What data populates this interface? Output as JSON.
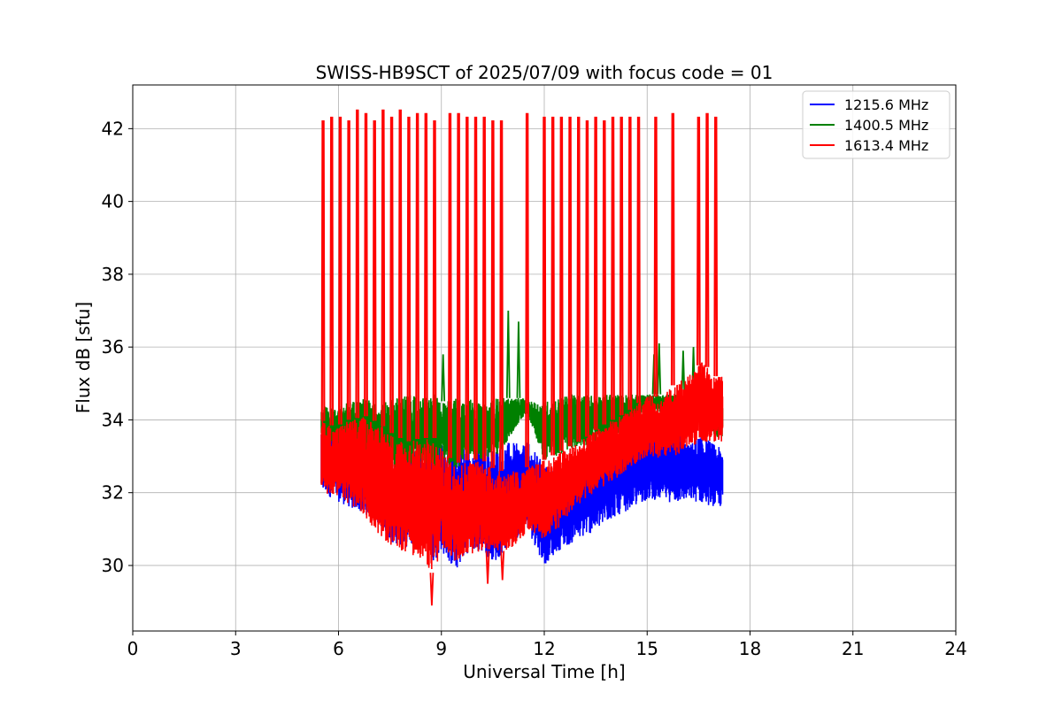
{
  "chart_data": {
    "type": "line",
    "title": "SWISS-HB9SCT of 2025/07/09 with focus code = 01",
    "xlabel": "Universal Time [h]",
    "ylabel": "Flux dB [sfu]",
    "xlim": [
      0,
      24
    ],
    "ylim": [
      28.2,
      43.2
    ],
    "xticks": [
      0,
      3,
      6,
      9,
      12,
      15,
      18,
      21,
      24
    ],
    "yticks": [
      30,
      32,
      34,
      36,
      38,
      40,
      42
    ],
    "grid": true,
    "legend_position": "top-right",
    "series": [
      {
        "name": "1215.6 MHz",
        "color": "#0000ff",
        "x": [
          5.5,
          5.9,
          6.3,
          6.8,
          7.2,
          7.6,
          8.0,
          8.4,
          8.8,
          9.0,
          9.4,
          9.8,
          10.2,
          10.6,
          11.0,
          11.4,
          11.5,
          12.0,
          12.4,
          12.8,
          13.2,
          13.6,
          14.0,
          14.4,
          14.8,
          15.0,
          15.4,
          15.8,
          16.2,
          16.6,
          17.0,
          17.2
        ],
        "y_max": [
          33.9,
          33.8,
          33.5,
          33.2,
          33.4,
          33.0,
          33.1,
          33.3,
          33.5,
          33.4,
          33.3,
          33.3,
          33.3,
          33.3,
          33.4,
          33.3,
          33.4,
          32.8,
          32.6,
          32.9,
          33.0,
          33.1,
          33.2,
          33.4,
          33.5,
          33.6,
          33.7,
          33.8,
          33.3,
          33.6,
          33.3,
          33.2
        ],
        "y_min": [
          32.0,
          31.8,
          31.6,
          31.4,
          31.1,
          30.6,
          30.5,
          30.6,
          30.1,
          30.4,
          29.8,
          30.4,
          30.3,
          30.1,
          30.6,
          30.9,
          31.0,
          30.0,
          30.4,
          30.6,
          30.8,
          31.0,
          31.3,
          31.5,
          31.7,
          31.8,
          31.8,
          31.7,
          31.8,
          31.7,
          31.6,
          31.6
        ]
      },
      {
        "name": "1400.5 MHz",
        "color": "#008000",
        "x": [
          5.5,
          5.9,
          6.3,
          6.8,
          7.2,
          7.6,
          8.0,
          8.4,
          8.8,
          9.0,
          9.4,
          9.8,
          10.2,
          10.6,
          11.0,
          11.4,
          11.5,
          12.0,
          12.4,
          12.8,
          13.2,
          13.6,
          14.0,
          14.4,
          14.8,
          15.0,
          15.4,
          15.8,
          16.2,
          16.6,
          17.0,
          17.2
        ],
        "y_max": [
          34.4,
          34.3,
          34.5,
          34.6,
          34.4,
          34.6,
          34.7,
          34.6,
          34.7,
          34.5,
          34.6,
          34.6,
          34.4,
          34.6,
          34.6,
          34.6,
          34.5,
          34.5,
          34.6,
          34.7,
          34.7,
          34.7,
          34.7,
          34.7,
          34.7,
          34.7,
          34.7,
          34.7,
          34.6,
          34.7,
          34.6,
          34.5
        ],
        "y_min": [
          33.3,
          33.4,
          33.2,
          33.0,
          32.8,
          32.6,
          32.7,
          32.8,
          32.6,
          32.9,
          32.6,
          33.0,
          32.9,
          33.0,
          33.5,
          34.1,
          34.2,
          32.9,
          33.0,
          33.2,
          33.3,
          33.4,
          33.5,
          33.6,
          34.1,
          34.3,
          34.2,
          34.2,
          34.2,
          34.2,
          33.5,
          33.5
        ],
        "spikes": [
          {
            "x": 9.05,
            "y": 35.8
          },
          {
            "x": 10.95,
            "y": 37.0
          },
          {
            "x": 11.25,
            "y": 36.7
          },
          {
            "x": 15.2,
            "y": 35.8
          },
          {
            "x": 15.35,
            "y": 36.1
          },
          {
            "x": 16.05,
            "y": 35.9
          },
          {
            "x": 16.35,
            "y": 36.0
          }
        ]
      },
      {
        "name": "1613.4 MHz",
        "color": "#ff0000",
        "x": [
          5.5,
          5.9,
          6.3,
          6.8,
          7.2,
          7.6,
          8.0,
          8.4,
          8.8,
          9.0,
          9.4,
          9.8,
          10.2,
          10.6,
          11.0,
          11.4,
          11.5,
          12.0,
          12.4,
          12.8,
          13.2,
          13.6,
          14.0,
          14.4,
          14.8,
          15.0,
          15.4,
          15.8,
          16.2,
          16.6,
          17.0,
          17.2
        ],
        "y_max": [
          34.0,
          33.8,
          34.0,
          34.1,
          33.9,
          33.6,
          33.4,
          33.5,
          33.5,
          33.2,
          32.8,
          32.9,
          32.9,
          32.6,
          32.6,
          32.6,
          32.7,
          32.9,
          33.1,
          33.3,
          33.5,
          33.8,
          34.0,
          34.2,
          34.5,
          34.7,
          34.6,
          35.0,
          35.2,
          35.6,
          35.2,
          35.2
        ],
        "y_min": [
          32.0,
          31.9,
          31.7,
          31.3,
          30.8,
          30.5,
          30.3,
          30.2,
          29.7,
          30.4,
          30.1,
          30.3,
          30.4,
          30.4,
          30.4,
          30.8,
          31.0,
          30.7,
          31.0,
          31.5,
          31.8,
          32.1,
          32.3,
          32.6,
          32.9,
          33.0,
          32.9,
          33.0,
          33.2,
          33.4,
          33.4,
          33.4
        ],
        "spike_x": [
          5.55,
          5.8,
          6.05,
          6.3,
          6.55,
          6.8,
          7.05,
          7.3,
          7.55,
          7.8,
          8.05,
          8.3,
          8.55,
          8.8,
          9.25,
          9.5,
          9.75,
          10.0,
          10.25,
          10.5,
          10.75,
          11.5,
          12.0,
          12.25,
          12.5,
          12.75,
          13.0,
          13.25,
          13.5,
          13.75,
          14.0,
          14.25,
          14.5,
          14.75,
          15.25,
          15.75,
          16.5,
          16.75,
          17.0
        ],
        "spike_y": [
          42.2,
          42.3,
          42.3,
          42.2,
          42.5,
          42.4,
          42.2,
          42.5,
          42.3,
          42.5,
          42.3,
          42.4,
          42.4,
          42.2,
          42.4,
          42.4,
          42.3,
          42.3,
          42.3,
          42.2,
          42.2,
          42.4,
          42.3,
          42.3,
          42.3,
          42.3,
          42.3,
          42.2,
          42.3,
          42.2,
          42.3,
          42.3,
          42.3,
          42.3,
          42.3,
          42.4,
          42.3,
          42.4,
          42.3
        ],
        "dips": [
          {
            "x": 8.72,
            "y": 28.9
          },
          {
            "x": 10.35,
            "y": 29.5
          },
          {
            "x": 10.78,
            "y": 29.6
          }
        ]
      }
    ]
  }
}
